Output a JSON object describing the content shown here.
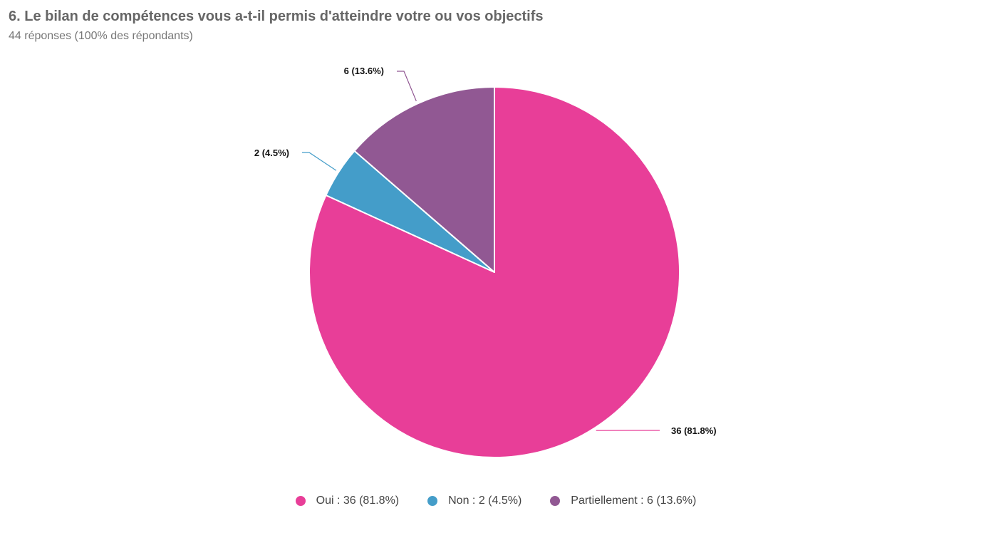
{
  "header": {
    "title": "6. Le bilan de compétences vous a-t-il permis d'atteindre votre ou vos objectifs",
    "subtitle": "44 réponses (100% des répondants)"
  },
  "chart_data": {
    "type": "pie",
    "title": "6. Le bilan de compétences vous a-t-il permis d'atteindre votre ou vos objectifs",
    "subtitle": "44 réponses (100% des répondants)",
    "total": 44,
    "slices": [
      {
        "name": "Oui",
        "value": 36,
        "percent": 81.8,
        "color": "#E83E98",
        "data_label": "36 (81.8%)",
        "legend_label": "Oui : 36 (81.8%)"
      },
      {
        "name": "Non",
        "value": 2,
        "percent": 4.5,
        "color": "#449DC9",
        "data_label": "2 (4.5%)",
        "legend_label": "Non : 2 (4.5%)"
      },
      {
        "name": "Partiellement",
        "value": 6,
        "percent": 13.6,
        "color": "#915893",
        "data_label": "6 (13.6%)",
        "legend_label": "Partiellement : 6 (13.6%)"
      }
    ],
    "legend_position": "bottom"
  }
}
